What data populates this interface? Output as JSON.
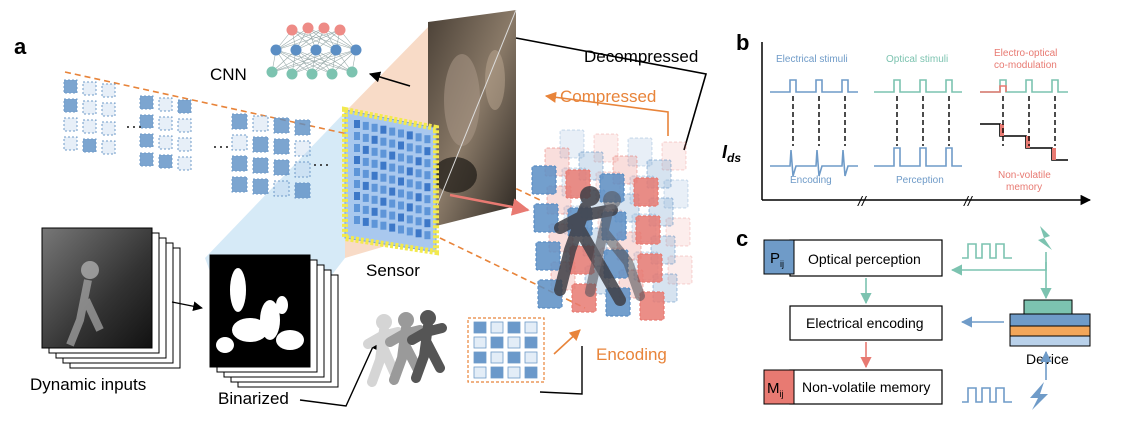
{
  "panels": {
    "a": {
      "letter": "a",
      "labels": {
        "cnn": "CNN",
        "decompressed": "Decompressed",
        "compressed": "Compressed",
        "sensor": "Sensor",
        "encoding": "Encoding",
        "dynamic_inputs": "Dynamic inputs",
        "binarized": "Binarized",
        "ellipsis": "···"
      }
    },
    "b": {
      "letter": "b",
      "ylabel_main": "I",
      "ylabel_sub": "ds",
      "groups": [
        {
          "top": "Electrical stimuli",
          "bottom": "Encoding",
          "top_color": "#6f9bc8",
          "bottom_color": "#6f9bc8"
        },
        {
          "top": "Optical stimuli",
          "bottom": "Perception",
          "top_color": "#7cc3b0",
          "bottom_color": "#6f9bc8"
        },
        {
          "top_line1": "Electro-optical",
          "top_line2": "co-modulation",
          "bottom_line1": "Non-volatile",
          "bottom_line2": "memory",
          "top_color": "#e87a72",
          "bottom_color": "#e87a72"
        }
      ]
    },
    "c": {
      "letter": "c",
      "boxes": {
        "perception": "Optical perception",
        "encoding": "Electrical encoding",
        "memory": "Non-volatile memory"
      },
      "badges": {
        "p_main": "P",
        "p_sub": "ij",
        "m_main": "M",
        "m_sub": "ij"
      },
      "device_label": "Device"
    }
  },
  "colors": {
    "blue": "#5b8ec4",
    "light_blue": "#b9d1ea",
    "teal": "#7cc3b0",
    "salmon": "#e87a72",
    "orange": "#e8843a",
    "sensor_blue": "#8fb7e6",
    "sensor_yellow": "#f2e94e"
  }
}
